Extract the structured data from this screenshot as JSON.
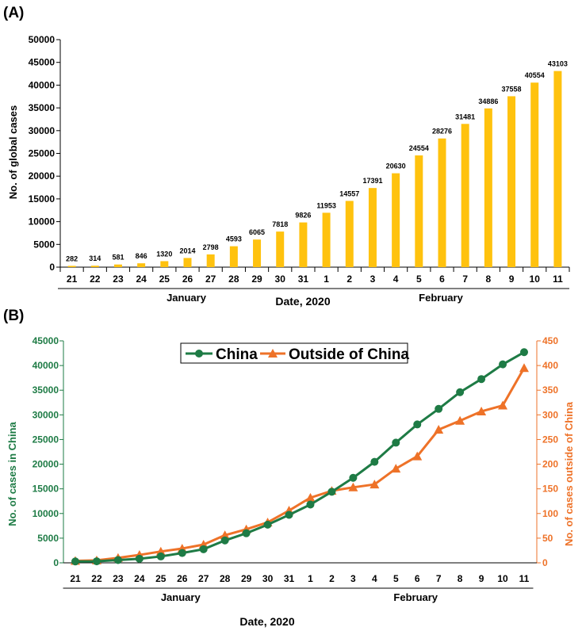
{
  "colors": {
    "bar": "#FFC20E",
    "china": "#1E7B45",
    "outside": "#EE7228",
    "axis": "#000000"
  },
  "chart_data": [
    {
      "panel_label": "(A)",
      "type": "bar",
      "categories": [
        "21",
        "22",
        "23",
        "24",
        "25",
        "26",
        "27",
        "28",
        "29",
        "30",
        "31",
        "1",
        "2",
        "3",
        "4",
        "5",
        "6",
        "7",
        "8",
        "9",
        "10",
        "11"
      ],
      "values": [
        282,
        314,
        581,
        846,
        1320,
        2014,
        2798,
        4593,
        6065,
        7818,
        9826,
        11953,
        14557,
        17391,
        20630,
        24554,
        28276,
        31481,
        34886,
        37558,
        40554,
        43103
      ],
      "data_labels": [
        "282",
        "314",
        "581",
        "846",
        "1320",
        "2014",
        "2798",
        "4593",
        "6065",
        "7818",
        "9826",
        "11953",
        "14557",
        "17391",
        "20630",
        "24554",
        "28276",
        "31481",
        "34886",
        "37558",
        "40554",
        "43103"
      ],
      "ylabel": "No. of global cases",
      "xlabel": "Date, 2020",
      "ylim": [
        0,
        50000
      ],
      "yticks": [
        "0",
        "5000",
        "10000",
        "15000",
        "20000",
        "25000",
        "30000",
        "35000",
        "40000",
        "45000",
        "50000"
      ],
      "month_groups": [
        {
          "label": "January",
          "start": 0,
          "end": 10
        },
        {
          "label": "February",
          "start": 11,
          "end": 21
        }
      ]
    },
    {
      "panel_label": "(B)",
      "type": "line",
      "categories": [
        "21",
        "22",
        "23",
        "24",
        "25",
        "26",
        "27",
        "28",
        "29",
        "30",
        "31",
        "1",
        "2",
        "3",
        "4",
        "5",
        "6",
        "7",
        "8",
        "9",
        "10",
        "11"
      ],
      "series": [
        {
          "name": "China",
          "axis": "left",
          "marker": "circle",
          "values": [
            278,
            309,
            571,
            830,
            1297,
            1985,
            2761,
            4537,
            5997,
            7736,
            9720,
            11821,
            14411,
            17238,
            20471,
            24363,
            28060,
            31211,
            34598,
            37251,
            40235,
            42708
          ]
        },
        {
          "name": "Outside of China",
          "axis": "right",
          "marker": "triangle",
          "values": [
            4,
            5,
            10,
            16,
            23,
            29,
            37,
            56,
            68,
            82,
            106,
            132,
            146,
            153,
            159,
            191,
            216,
            270,
            288,
            307,
            319,
            395
          ]
        }
      ],
      "ylabel_left": "No. of cases in China",
      "ylabel_right": "No. of cases outside of China",
      "xlabel": "Date, 2020",
      "ylim_left": [
        0,
        45000
      ],
      "ylim_right": [
        0,
        450
      ],
      "yticks_left": [
        "0",
        "5000",
        "10000",
        "15000",
        "20000",
        "25000",
        "30000",
        "35000",
        "40000",
        "45000"
      ],
      "yticks_right": [
        "0",
        "50",
        "100",
        "150",
        "200",
        "250",
        "300",
        "350",
        "400",
        "450"
      ],
      "legend_position": "top-center",
      "month_groups": [
        {
          "label": "January",
          "start": 0,
          "end": 10
        },
        {
          "label": "February",
          "start": 11,
          "end": 21
        }
      ]
    }
  ]
}
